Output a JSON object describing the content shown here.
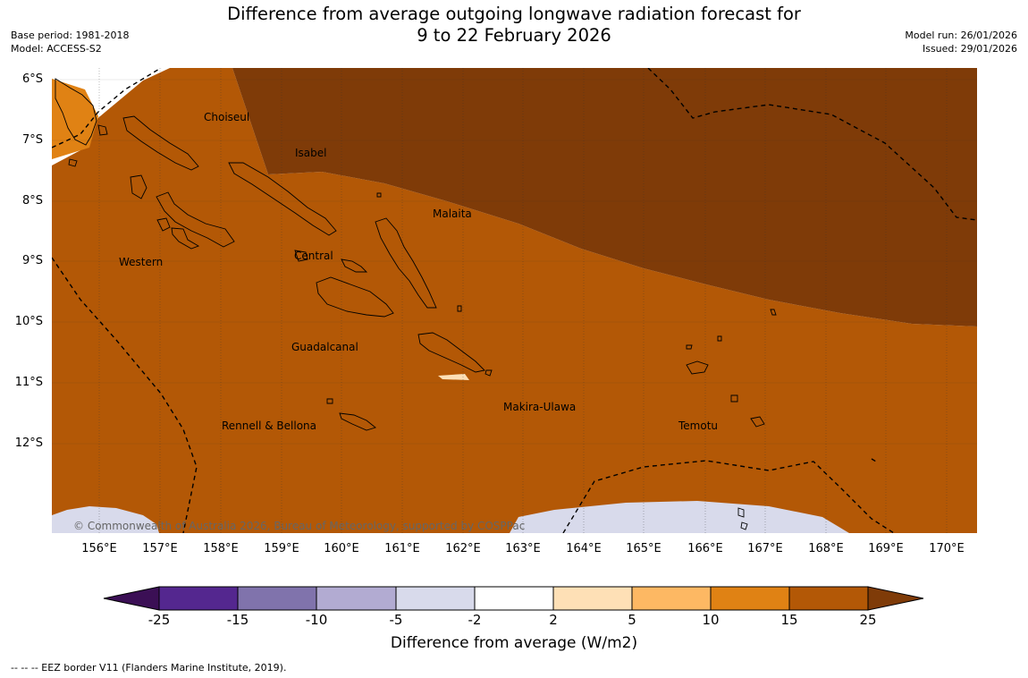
{
  "title_line1": "Difference from average outgoing longwave radiation forecast for",
  "title_line2": "9 to 22 February 2026",
  "base_period": "Base period: 1981-2018",
  "model": "Model: ACCESS-S2",
  "model_run": "Model run: 26/01/2026",
  "issued": "Issued: 29/01/2026",
  "lat_labels": [
    "6°S",
    "7°S",
    "8°S",
    "9°S",
    "10°S",
    "11°S",
    "12°S"
  ],
  "lon_labels": [
    "156°E",
    "157°E",
    "158°E",
    "159°E",
    "160°E",
    "161°E",
    "162°E",
    "163°E",
    "164°E",
    "165°E",
    "166°E",
    "167°E",
    "168°E",
    "169°E",
    "170°E"
  ],
  "province_labels": {
    "choiseul": "Choiseul",
    "isabel": "Isabel",
    "malaita": "Malaita",
    "western": "Western",
    "central": "Central",
    "guadalcanal": "Guadalcanal",
    "makira": "Makira-Ulawa",
    "temotu": "Temotu",
    "rennell": "Rennell & Bellona"
  },
  "copyright": "© Commonwealth of Australia 2026, Bureau of Meteorology, supported by COSPPac",
  "colorbar": {
    "ticks": [
      "-25",
      "-15",
      "-10",
      "-5",
      "-2",
      "2",
      "5",
      "10",
      "15",
      "25"
    ],
    "colors": [
      "#3b0f55",
      "#54278f",
      "#8073ac",
      "#b2abd2",
      "#d8daeb",
      "#ffffff",
      "#fee0b6",
      "#fdb863",
      "#e08214",
      "#b35806",
      "#7f3b08"
    ],
    "label": "Difference from average (W/m2)"
  },
  "footnote": "--  --  -- EEZ border V11 (Flanders Marine Institute, 2019)."
}
